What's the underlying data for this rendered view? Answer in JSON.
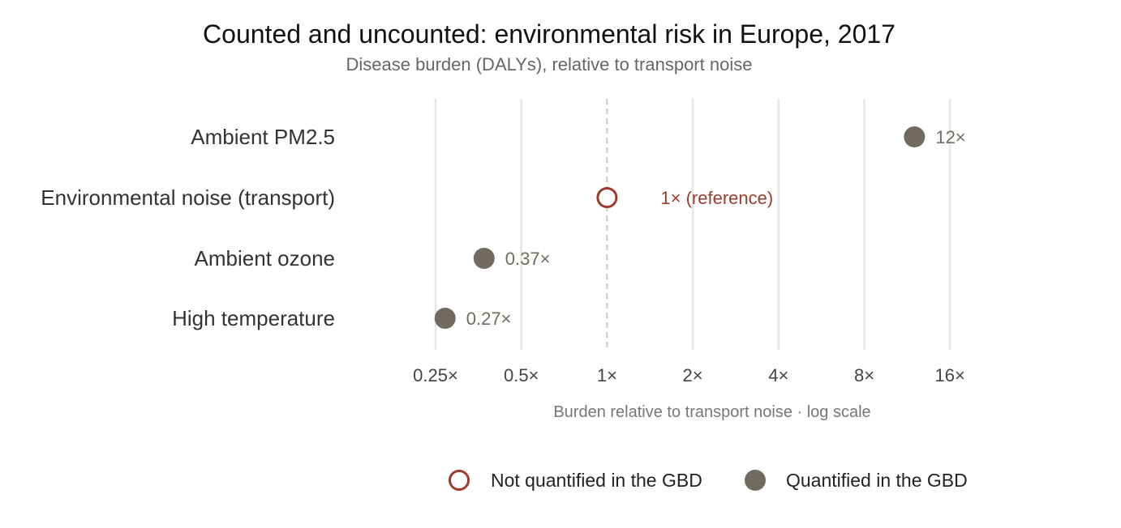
{
  "chart_data": {
    "type": "scatter",
    "title": "Counted and uncounted: environmental risk in Europe, 2017",
    "subtitle": "Disease burden (DALYs), relative to transport noise",
    "xlabel": "Burden relative to transport noise · log scale",
    "ylabel": "",
    "x_scale": "log2",
    "xlim": [
      0.25,
      16
    ],
    "x_ticks": [
      0.25,
      0.5,
      1,
      2,
      4,
      8,
      16
    ],
    "x_tick_labels": [
      "0.25×",
      "0.5×",
      "1×",
      "2×",
      "4×",
      "8×",
      "16×"
    ],
    "reference_line": 1,
    "grid": true,
    "legend_position": "bottom",
    "colors": {
      "quantified": "#716b5f",
      "not_quantified": "#9e3a2c",
      "grid": "#e6e6e6",
      "reference": "#cfc8b8"
    },
    "categories": [
      "Ambient PM2.5",
      "Environmental noise (transport)",
      "Ambient ozone",
      "High temperature"
    ],
    "points": [
      {
        "category": "Ambient PM2.5",
        "value": 12,
        "label": "12×",
        "group": "Quantified in the GBD"
      },
      {
        "category": "Environmental noise (transport)",
        "value": 1,
        "label": "1× (reference)",
        "group": "Not quantified in the GBD"
      },
      {
        "category": "Ambient ozone",
        "value": 0.37,
        "label": "0.37×",
        "group": "Quantified in the GBD"
      },
      {
        "category": "High temperature",
        "value": 0.27,
        "label": "0.27×",
        "group": "Quantified in the GBD"
      }
    ],
    "legend": [
      {
        "label": "Not quantified in the GBD",
        "style": "hollow",
        "color_key": "not_quantified"
      },
      {
        "label": "Quantified in the GBD",
        "style": "filled",
        "color_key": "quantified"
      }
    ]
  }
}
